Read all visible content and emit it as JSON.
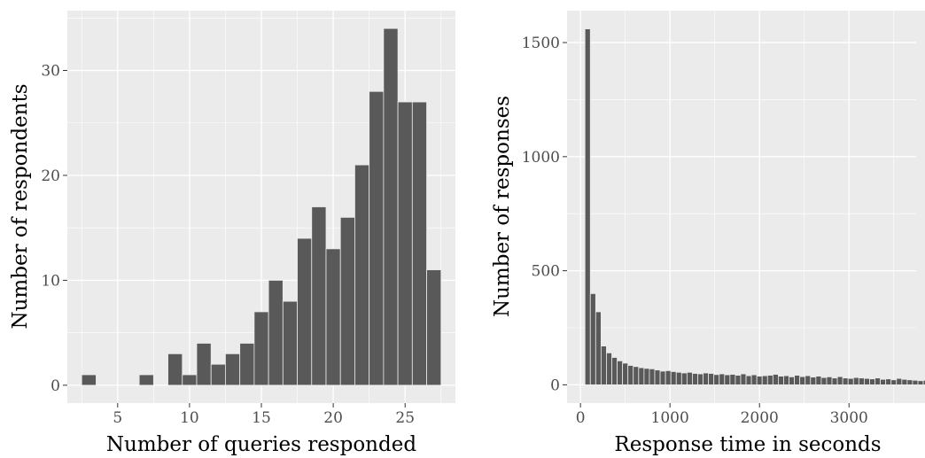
{
  "chart_data": [
    {
      "type": "bar",
      "subtype": "histogram",
      "xlabel": "Number of queries responded",
      "ylabel": "Number of respondents",
      "xlim": [
        1.5,
        28.5
      ],
      "ylim": [
        -1.7,
        35.7
      ],
      "x_ticks": [
        5,
        10,
        15,
        20,
        25
      ],
      "y_ticks": [
        0,
        10,
        20,
        30
      ],
      "bin_width": 1,
      "bin_centers": [
        3,
        4,
        5,
        6,
        7,
        8,
        9,
        10,
        11,
        12,
        13,
        14,
        15,
        16,
        17,
        18,
        19,
        20,
        21,
        22,
        23,
        24,
        25,
        26,
        27
      ],
      "values": [
        1,
        0,
        0,
        0,
        1,
        0,
        3,
        1,
        4,
        2,
        3,
        4,
        7,
        10,
        8,
        14,
        17,
        13,
        16,
        21,
        28,
        34,
        27,
        27,
        11
      ],
      "grid": true,
      "legend": "none"
    },
    {
      "type": "bar",
      "subtype": "histogram",
      "xlabel": "Response time in seconds",
      "ylabel": "Number of responses",
      "xlim": [
        -150,
        3750
      ],
      "ylim": [
        -80,
        1640
      ],
      "x_ticks": [
        0,
        1000,
        2000,
        3000
      ],
      "y_ticks": [
        0,
        500,
        1000,
        1500
      ],
      "bin_start": 50,
      "bin_width": 60,
      "values": [
        1560,
        400,
        320,
        170,
        140,
        120,
        105,
        95,
        85,
        80,
        75,
        72,
        70,
        65,
        60,
        62,
        58,
        55,
        52,
        55,
        50,
        48,
        52,
        50,
        45,
        48,
        44,
        46,
        42,
        48,
        40,
        44,
        38,
        40,
        42,
        46,
        38,
        40,
        35,
        42,
        36,
        40,
        34,
        38,
        32,
        35,
        30,
        36,
        30,
        28,
        32,
        30,
        28,
        26,
        30,
        24,
        26,
        22,
        28,
        24,
        22,
        20,
        18,
        20
      ]
    }
  ]
}
